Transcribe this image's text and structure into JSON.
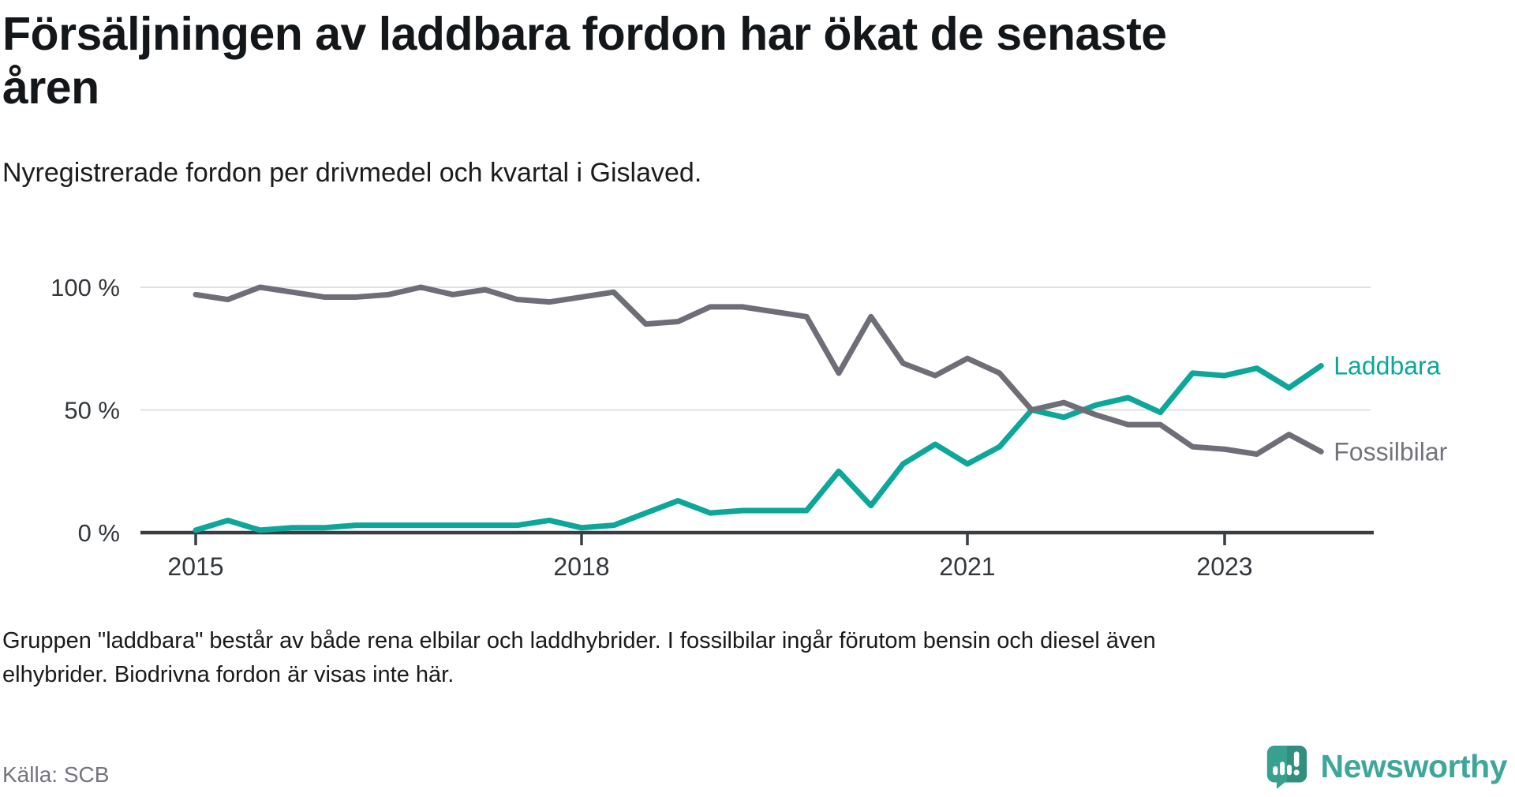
{
  "header": {
    "title": "Försäljningen av laddbara fordon har ökat de senaste åren",
    "subtitle": "Nyregistrerade fordon per drivmedel och kvartal i Gislaved."
  },
  "chart_data": {
    "type": "line",
    "title": "Försäljningen av laddbara fordon har ökat de senaste åren",
    "subtitle": "Nyregistrerade fordon per drivmedel och kvartal i Gislaved.",
    "unit": "%",
    "grid": "horizontal",
    "legend_position": "line-end-labels",
    "x": [
      "2015K1",
      "2015K2",
      "2015K3",
      "2015K4",
      "2016K1",
      "2016K2",
      "2016K3",
      "2016K4",
      "2017K1",
      "2017K2",
      "2017K3",
      "2017K4",
      "2018K1",
      "2018K2",
      "2018K3",
      "2018K4",
      "2019K1",
      "2019K2",
      "2019K3",
      "2019K4",
      "2020K1",
      "2020K2",
      "2020K3",
      "2020K4",
      "2021K1",
      "2021K2",
      "2021K3",
      "2021K4",
      "2022K1",
      "2022K2",
      "2022K3",
      "2022K4",
      "2023K1",
      "2023K2",
      "2023K3",
      "2023K4"
    ],
    "series": [
      {
        "name": "Laddbara",
        "color": "#0CA69B",
        "label_color": "#0CA69B",
        "values": [
          1,
          5,
          1,
          2,
          2,
          3,
          3,
          3,
          3,
          3,
          3,
          5,
          2,
          3,
          8,
          13,
          8,
          9,
          9,
          9,
          25,
          11,
          28,
          36,
          28,
          35,
          50,
          47,
          52,
          55,
          49,
          65,
          64,
          67,
          59,
          68
        ]
      },
      {
        "name": "Fossilbilar",
        "color": "#6E6E78",
        "label_color": "#73737B",
        "values": [
          97,
          95,
          100,
          98,
          96,
          96,
          97,
          100,
          97,
          99,
          95,
          94,
          96,
          98,
          85,
          86,
          92,
          92,
          90,
          88,
          65,
          88,
          69,
          64,
          71,
          65,
          50,
          53,
          48,
          44,
          44,
          35,
          34,
          32,
          40,
          33
        ]
      }
    ],
    "y_axis": {
      "range": [
        0,
        100
      ],
      "ticks": [
        {
          "value": 0,
          "label": "0 %"
        },
        {
          "value": 50,
          "label": "50 %"
        },
        {
          "value": 100,
          "label": "100 %"
        }
      ]
    },
    "x_axis": {
      "ticks": [
        {
          "index": 0,
          "label": "2015"
        },
        {
          "index": 12,
          "label": "2018"
        },
        {
          "index": 24,
          "label": "2021"
        },
        {
          "index": 32,
          "label": "2023"
        }
      ]
    }
  },
  "footer": {
    "note": "Gruppen \"laddbara\" består av både rena elbilar och laddhybrider. I fossilbilar ingår förutom bensin och diesel även elhybrider. Biodrivna fordon är visas inte här.",
    "source": "Källa: SCB",
    "brand": "Newsworthy"
  },
  "colors": {
    "accent_teal": "#0CA69B",
    "line_gray": "#6E6E78",
    "axis": "#3a3e42",
    "gridline": "#e1e1e1",
    "logo_teal": "#3fa79a"
  }
}
